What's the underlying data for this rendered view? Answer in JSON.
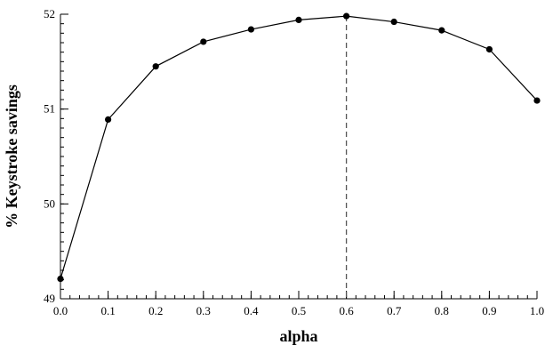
{
  "chart_data": {
    "type": "line",
    "title": "",
    "xlabel": "alpha",
    "ylabel": "% Keystroke savings",
    "xlim": [
      0.0,
      1.0
    ],
    "ylim": [
      49,
      52
    ],
    "x_ticks": [
      "0.0",
      "0.1",
      "0.2",
      "0.3",
      "0.4",
      "0.5",
      "0.6",
      "0.7",
      "0.8",
      "0.9",
      "1.0"
    ],
    "y_ticks": [
      "49",
      "50",
      "51",
      "52"
    ],
    "grid": false,
    "legend": "none",
    "series": [
      {
        "x": [
          0.0,
          0.1,
          0.2,
          0.3,
          0.4,
          0.5,
          0.6,
          0.7,
          0.8,
          0.9,
          1.0
        ],
        "values": [
          49.21,
          50.89,
          51.45,
          51.71,
          51.84,
          51.94,
          51.98,
          51.92,
          51.83,
          51.63,
          51.09
        ],
        "color": "#000000",
        "marker": "circle"
      }
    ],
    "reference_line": {
      "x": 0.6,
      "style": "dashed",
      "color": "#555555"
    }
  }
}
